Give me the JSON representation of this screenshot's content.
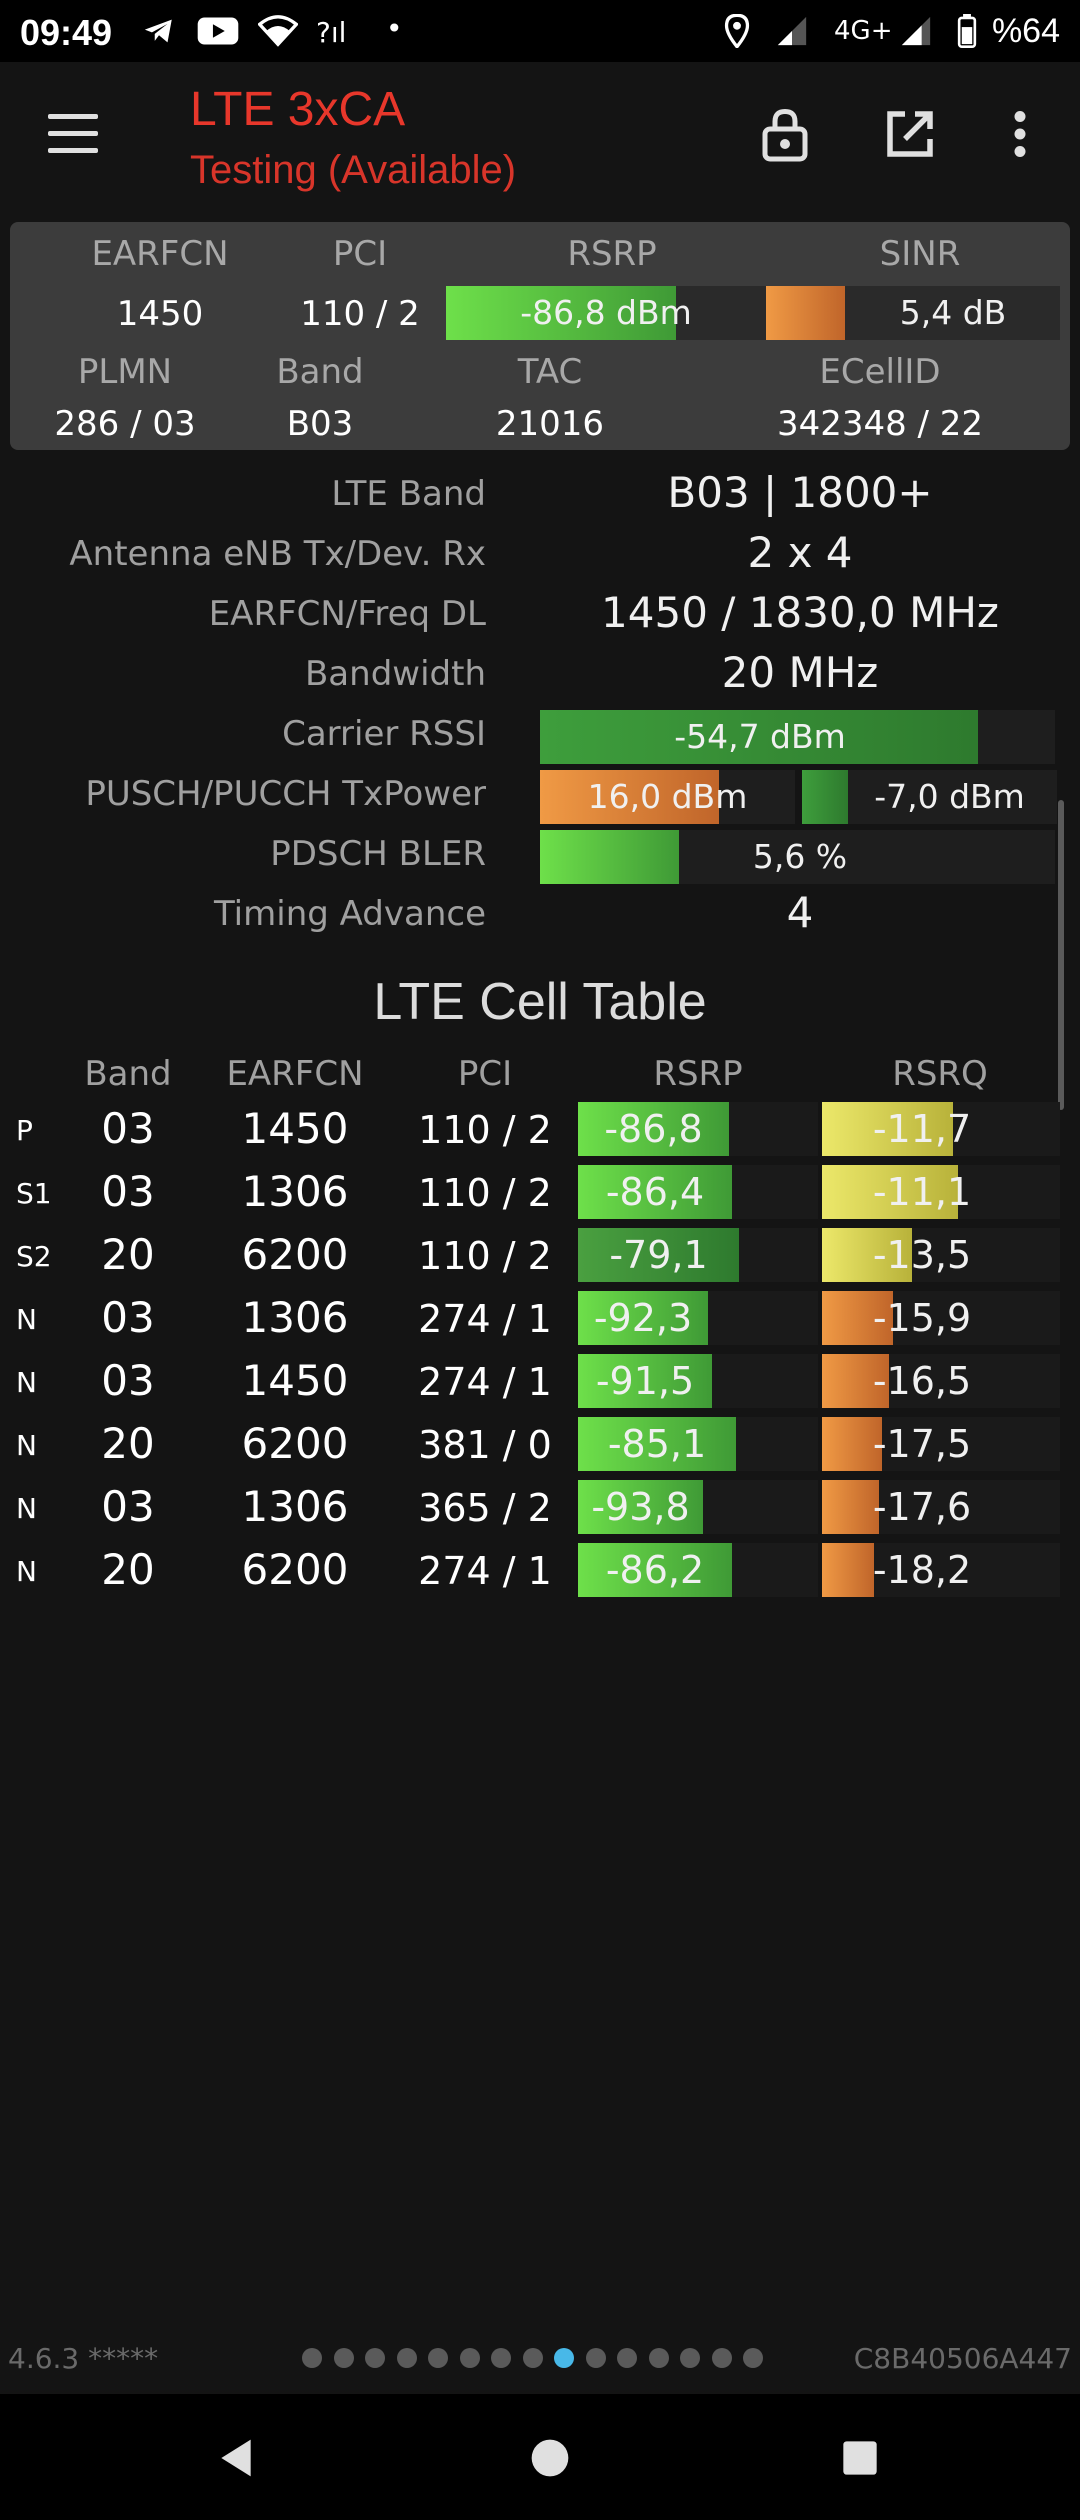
{
  "status_bar": {
    "time": "09:49",
    "network": "4G+",
    "battery": "%64"
  },
  "app_bar": {
    "title": "LTE 3xCA",
    "subtitle": "Testing (Available)"
  },
  "summary": {
    "headers": {
      "earfcn": "EARFCN",
      "pci": "PCI",
      "rsrp": "RSRP",
      "sinr": "SINR",
      "plmn": "PLMN",
      "band": "Band",
      "tac": "TAC",
      "ecellid": "ECellID"
    },
    "earfcn": "1450",
    "pci": "110 / 2",
    "rsrp": "-86,8 dBm",
    "rsrp_level": 0.72,
    "sinr": "5,4 dB",
    "sinr_level": 0.27,
    "plmn": "286 / 03",
    "band": "B03",
    "tac": "21016",
    "ecellid": "342348 / 22"
  },
  "details": {
    "lte_band_label": "LTE Band",
    "lte_band": "B03 | 1800+",
    "antenna_label": "Antenna eNB Tx/Dev. Rx",
    "antenna": "2 x 4",
    "earfcn_freq_label": "EARFCN/Freq DL",
    "earfcn_freq": "1450 / 1830,0 MHz",
    "bandwidth_label": "Bandwidth",
    "bandwidth": "20 MHz",
    "rssi_label": "Carrier RSSI",
    "rssi": "-54,7 dBm",
    "rssi_level": 0.85,
    "txpower_label": "PUSCH/PUCCH TxPower",
    "pusch": "16,0 dBm",
    "pusch_level": 0.7,
    "pucch": "-7,0 dBm",
    "pucch_level": 0.18,
    "bler_label": "PDSCH BLER",
    "bler": "5,6 %",
    "bler_level": 0.27,
    "ta_label": "Timing Advance",
    "ta": "4"
  },
  "cell_table": {
    "title": "LTE Cell Table",
    "headers": {
      "band": "Band",
      "earfcn": "EARFCN",
      "pci": "PCI",
      "rsrp": "RSRP",
      "rsrq": "RSRQ"
    },
    "rows": [
      {
        "type": "P",
        "band": "03",
        "earfcn": "1450",
        "pci": "110 / 2",
        "rsrp": "-86,8",
        "rsrp_level": 0.63,
        "rsrp_color": "green",
        "rsrq": "-11,7",
        "rsrq_level": 0.55,
        "rsrq_color": "yellow"
      },
      {
        "type": "S1",
        "band": "03",
        "earfcn": "1306",
        "pci": "110 / 2",
        "rsrp": "-86,4",
        "rsrp_level": 0.64,
        "rsrp_color": "green",
        "rsrq": "-11,1",
        "rsrq_level": 0.57,
        "rsrq_color": "yellow"
      },
      {
        "type": "S2",
        "band": "20",
        "earfcn": "6200",
        "pci": "110 / 2",
        "rsrp": "-79,1",
        "rsrp_level": 0.67,
        "rsrp_color": "darkgreen",
        "rsrq": "-13,5",
        "rsrq_level": 0.38,
        "rsrq_color": "yellow"
      },
      {
        "type": "N",
        "band": "03",
        "earfcn": "1306",
        "pci": "274 / 1",
        "rsrp": "-92,3",
        "rsrp_level": 0.54,
        "rsrp_color": "green",
        "rsrq": "-15,9",
        "rsrq_level": 0.3,
        "rsrq_color": "orange"
      },
      {
        "type": "N",
        "band": "03",
        "earfcn": "1450",
        "pci": "274 / 1",
        "rsrp": "-91,5",
        "rsrp_level": 0.56,
        "rsrp_color": "green",
        "rsrq": "-16,5",
        "rsrq_level": 0.28,
        "rsrq_color": "orange"
      },
      {
        "type": "N",
        "band": "20",
        "earfcn": "6200",
        "pci": "381 / 0",
        "rsrp": "-85,1",
        "rsrp_level": 0.66,
        "rsrp_color": "green",
        "rsrq": "-17,5",
        "rsrq_level": 0.25,
        "rsrq_color": "orange"
      },
      {
        "type": "N",
        "band": "03",
        "earfcn": "1306",
        "pci": "365 / 2",
        "rsrp": "-93,8",
        "rsrp_level": 0.52,
        "rsrp_color": "green",
        "rsrq": "-17,6",
        "rsrq_level": 0.24,
        "rsrq_color": "orange"
      },
      {
        "type": "N",
        "band": "20",
        "earfcn": "6200",
        "pci": "274 / 1",
        "rsrp": "-86,2",
        "rsrp_level": 0.64,
        "rsrp_color": "green",
        "rsrq": "-18,2",
        "rsrq_level": 0.22,
        "rsrq_color": "orange"
      }
    ]
  },
  "footer": {
    "version": "4.6.3 *****",
    "device_id": "C8B40506A447",
    "page_count": 15,
    "active_page": 8
  },
  "colors": {
    "accent": "#e8372b",
    "green": "#6ee04a",
    "orange": "#f09a45",
    "yellow": "#ece86a",
    "dot_active": "#48b8e8"
  },
  "icons": {
    "menu": "menu-icon",
    "lock": "lock-icon",
    "external": "open-external-icon",
    "more": "more-vert-icon",
    "back": "back-icon",
    "home": "home-icon",
    "recents": "recents-icon"
  }
}
